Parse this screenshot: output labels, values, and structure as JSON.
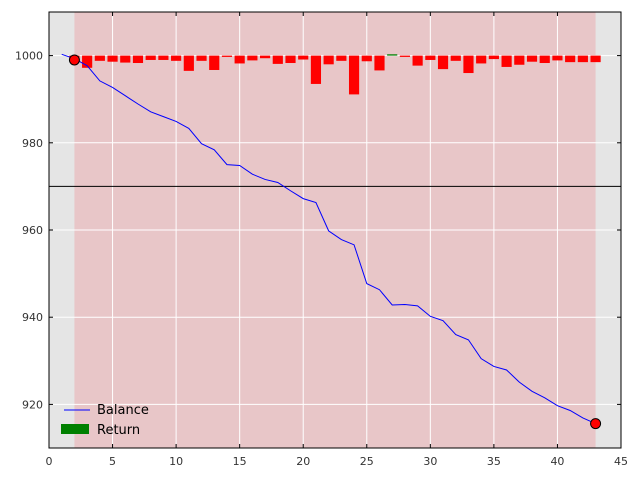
{
  "chart_data": {
    "type": "line",
    "xlim": [
      0,
      45
    ],
    "ylim": [
      910,
      1010
    ],
    "x_ticks": [
      "0",
      "5",
      "10",
      "15",
      "20",
      "25",
      "30",
      "35",
      "40",
      "45"
    ],
    "y_ticks": [
      "920",
      "940",
      "960",
      "980",
      "1000"
    ],
    "grid": true,
    "legend_placement": "lower-left",
    "shaded_span": {
      "x_start": 2,
      "x_end": 43
    },
    "reference_line": {
      "y": 970
    },
    "series": [
      {
        "name": "Balance",
        "color": "#0000ff",
        "x": [
          1,
          2,
          3,
          4,
          5,
          6,
          7,
          8,
          9,
          10,
          11,
          12,
          13,
          14,
          15,
          16,
          17,
          18,
          19,
          20,
          21,
          22,
          23,
          24,
          25,
          26,
          27,
          28,
          29,
          30,
          31,
          32,
          33,
          34,
          35,
          36,
          37,
          38,
          39,
          40,
          41,
          42,
          43
        ],
        "y": [
          1000.3,
          999.3,
          997.7,
          994.2,
          992.7,
          990.8,
          988.9,
          987.1,
          986.0,
          984.9,
          983.3,
          979.8,
          978.4,
          975.0,
          974.8,
          972.8,
          971.6,
          970.9,
          969.0,
          967.2,
          966.3,
          959.8,
          957.8,
          956.6,
          947.7,
          946.3,
          942.8,
          942.9,
          942.6,
          940.2,
          939.2,
          936.0,
          934.8,
          930.5,
          928.7,
          927.9,
          925.1,
          923.0,
          921.5,
          919.7,
          918.6,
          916.9,
          915.6
        ]
      },
      {
        "name": "Return",
        "kind": "bar",
        "base": 1000,
        "color_positive": "#008000",
        "color_negative": "#ff0000",
        "x": [
          2,
          3,
          4,
          5,
          6,
          7,
          8,
          9,
          10,
          11,
          12,
          13,
          14,
          15,
          16,
          17,
          18,
          19,
          20,
          21,
          22,
          23,
          24,
          25,
          26,
          27,
          28,
          29,
          30,
          31,
          32,
          33,
          34,
          35,
          36,
          37,
          38,
          39,
          40,
          41,
          42,
          43
        ],
        "values": [
          -1.0,
          -2.8,
          -1.2,
          -1.4,
          -1.6,
          -1.7,
          -1.0,
          -1.0,
          -1.2,
          -3.5,
          -1.2,
          -3.3,
          -0.3,
          -1.8,
          -1.1,
          -0.6,
          -1.9,
          -1.7,
          -0.9,
          -6.5,
          -2.0,
          -1.2,
          -8.9,
          -1.3,
          -3.4,
          0.3,
          -0.3,
          -2.3,
          -1.0,
          -3.1,
          -1.2,
          -4.0,
          -1.8,
          -0.8,
          -2.6,
          -2.1,
          -1.4,
          -1.7,
          -1.1,
          -1.5,
          -1.5,
          -1.5
        ]
      }
    ],
    "markers": [
      {
        "x": 2,
        "y": 999.0,
        "color": "#ff0000"
      },
      {
        "x": 43,
        "y": 915.6,
        "color": "#ff0000"
      }
    ],
    "colors": {
      "plot_background": "#e5e5e5",
      "span_fill": "#e8c6c8",
      "grid": "#ffffff",
      "reference_line": "#000000"
    }
  }
}
